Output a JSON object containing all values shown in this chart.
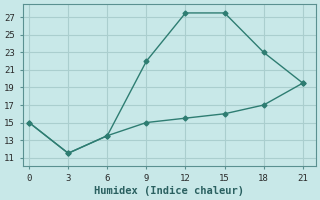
{
  "xlabel": "Humidex (Indice chaleur)",
  "background_color": "#c8e8e8",
  "grid_color": "#aacece",
  "line_color": "#2e7d72",
  "series1_x": [
    0,
    3,
    6,
    9,
    12,
    15,
    18,
    21
  ],
  "series1_y": [
    15,
    11.5,
    13.5,
    22,
    27.5,
    27.5,
    23,
    19.5
  ],
  "series2_x": [
    0,
    3,
    6,
    9,
    12,
    15,
    18,
    21
  ],
  "series2_y": [
    15,
    11.5,
    13.5,
    15,
    15.5,
    16,
    17,
    19.5
  ],
  "xlim": [
    -0.5,
    22
  ],
  "ylim": [
    10,
    28.5
  ],
  "xticks": [
    0,
    3,
    6,
    9,
    12,
    15,
    18,
    21
  ],
  "yticks": [
    11,
    13,
    15,
    17,
    19,
    21,
    23,
    25,
    27
  ],
  "tick_fontsize": 6.5,
  "xlabel_fontsize": 7.5
}
